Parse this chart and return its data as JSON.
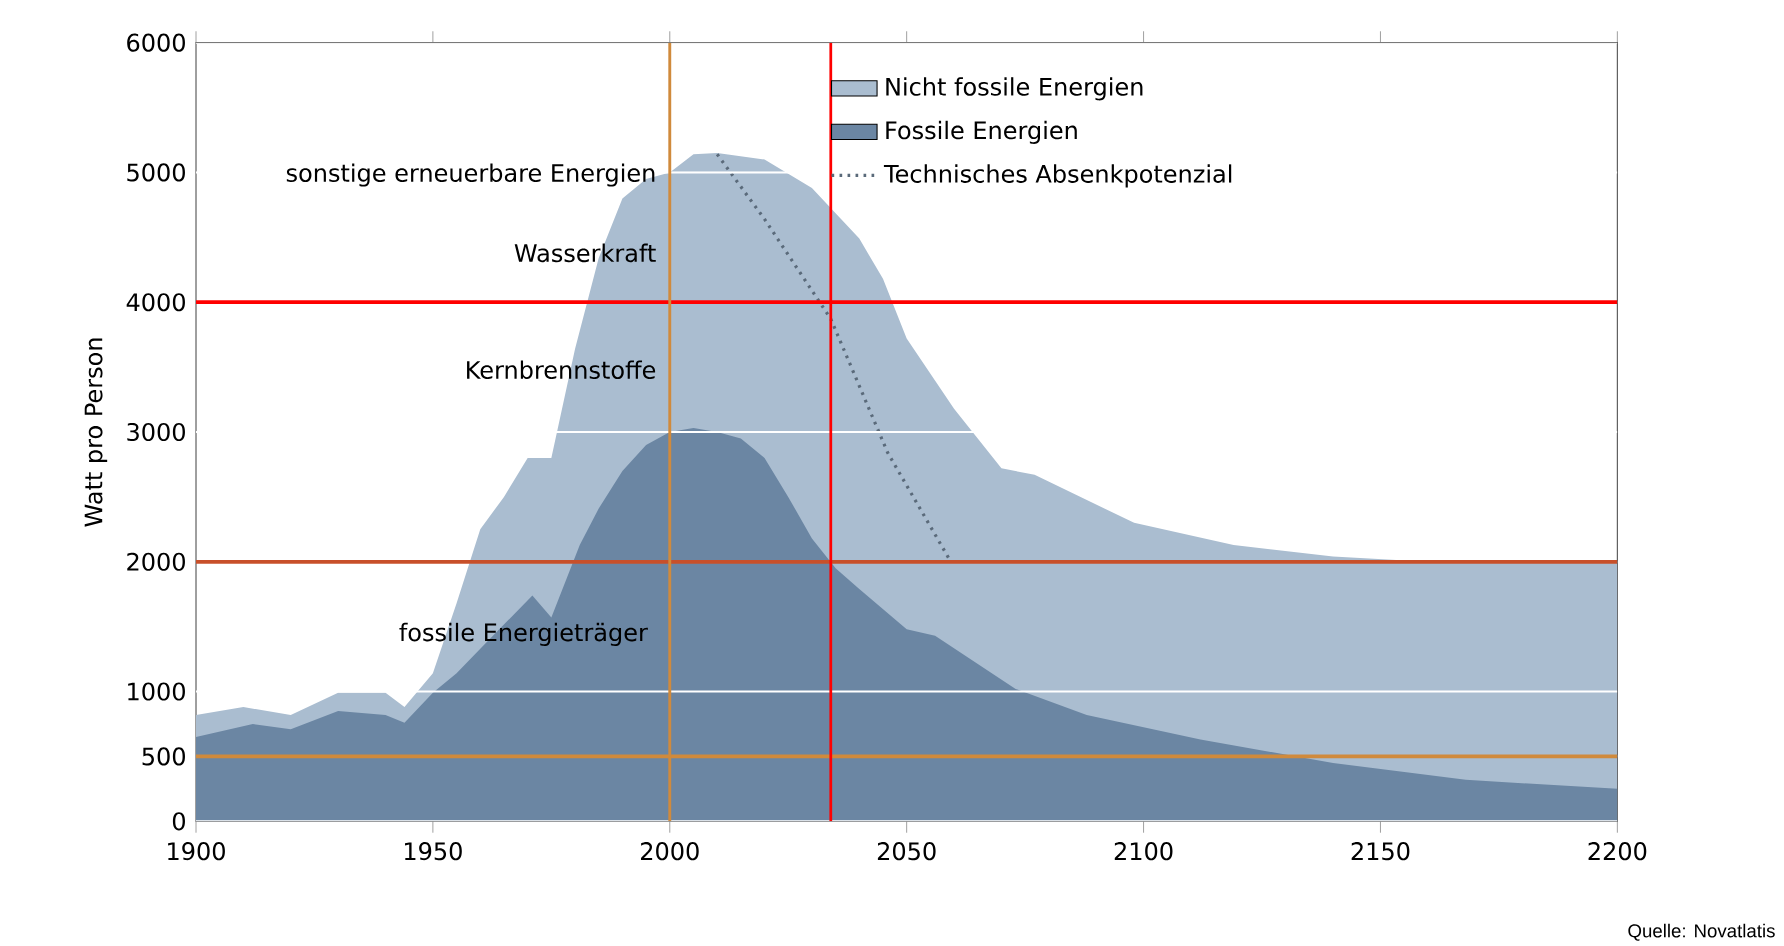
{
  "chart_data": {
    "type": "area",
    "ylabel": "Watt pro Person",
    "xlim": [
      1900,
      2200
    ],
    "xticks": [
      1900,
      1950,
      2000,
      2050,
      2100,
      2150,
      2200
    ],
    "ylim": [
      0,
      6000
    ],
    "yticks": [
      0,
      500,
      1000,
      2000,
      3000,
      4000,
      5000,
      6000
    ],
    "grid": "y",
    "legend": "top right",
    "series": [
      {
        "name": "Nicht fossile Energien",
        "color": "#aabdd0",
        "x": [
          1900,
          1910,
          1920,
          1930,
          1940,
          1944,
          1950,
          1955,
          1960,
          1965,
          1970,
          1975,
          1980,
          1985,
          1990,
          1995,
          2000,
          2005,
          2010,
          2020,
          2030,
          2040,
          2045,
          2050,
          2060,
          2070,
          2077,
          2098,
          2119,
          2140,
          2160,
          2200
        ],
        "values": [
          820,
          880,
          820,
          990,
          990,
          880,
          1140,
          1680,
          2250,
          2500,
          2800,
          2800,
          3640,
          4340,
          4800,
          4950,
          5000,
          5140,
          5150,
          5100,
          4880,
          4490,
          4180,
          3720,
          3180,
          2720,
          2670,
          2300,
          2130,
          2040,
          2000,
          2000
        ]
      },
      {
        "name": "Fossile Energien",
        "color": "#6b86a3",
        "x": [
          1900,
          1912,
          1920,
          1930,
          1940,
          1944,
          1950,
          1955,
          1960,
          1971,
          1975,
          1981,
          1985,
          1990,
          1995,
          2000,
          2005,
          2010,
          2015,
          2020,
          2025,
          2030,
          2035,
          2040,
          2050,
          2056,
          2073,
          2088,
          2112,
          2140,
          2168,
          2200
        ],
        "values": [
          650,
          750,
          710,
          850,
          820,
          760,
          990,
          1140,
          1330,
          1740,
          1570,
          2130,
          2410,
          2700,
          2900,
          3000,
          3030,
          3000,
          2950,
          2800,
          2500,
          2180,
          1950,
          1790,
          1480,
          1430,
          1020,
          820,
          630,
          450,
          320,
          250
        ]
      },
      {
        "name": "Technisches Absenkpotenzial",
        "type": "line",
        "line_style": "dotted",
        "color": "#5a6a7a",
        "x": [
          2010,
          2020,
          2034,
          2046,
          2059
        ],
        "values": [
          5140,
          4640,
          3870,
          2840,
          2020
        ]
      }
    ],
    "ref_lines": [
      {
        "axis": "y",
        "value": 2000,
        "color": "#c8502a"
      },
      {
        "axis": "y",
        "value": 500,
        "color": "#d08a3c"
      },
      {
        "axis": "y",
        "value": 4000,
        "color": "#ff0000"
      },
      {
        "axis": "x",
        "value": 2000,
        "color": "#d08a3c"
      },
      {
        "axis": "x",
        "value": 2034,
        "color": "#ff0000"
      }
    ],
    "annotations": [
      "sonstige erneuerbare Energien",
      "Wasserkraft",
      "Kernbrennstoffe",
      "fossile Energieträger",
      "Quelle: Novatlatis"
    ]
  }
}
